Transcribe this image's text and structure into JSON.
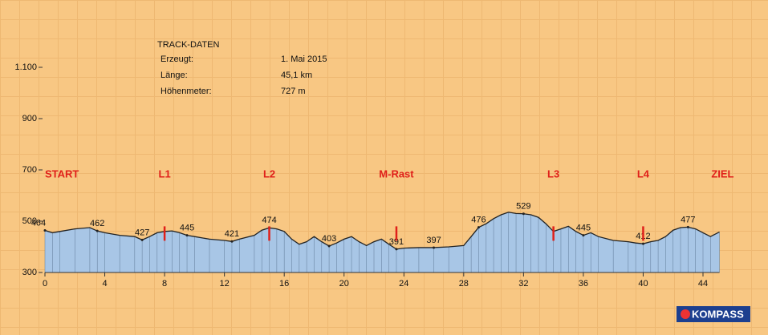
{
  "chart_data": {
    "type": "area",
    "info": {
      "title": "TRACK-DATEN",
      "rows": [
        [
          "Erzeugt:",
          "1. Mai 2015"
        ],
        [
          "Länge:",
          "45,1 km"
        ],
        [
          "Höhenmeter:",
          "727 m"
        ]
      ]
    },
    "x": [
      0,
      0.5,
      1,
      2,
      3,
      3.5,
      4,
      5,
      6,
      6.5,
      7,
      7.5,
      8,
      8.5,
      9,
      9.5,
      10,
      11,
      12,
      12.5,
      13,
      14,
      14.5,
      15,
      15.5,
      16,
      16.5,
      17,
      17.5,
      18,
      18.5,
      19,
      19.5,
      20,
      20.5,
      21,
      21.5,
      22,
      22.5,
      23,
      23.5,
      24,
      25,
      26,
      27,
      28,
      28.5,
      29,
      29.5,
      30,
      30.5,
      31,
      31.5,
      32,
      32.5,
      33,
      33.5,
      34,
      34.5,
      35,
      35.5,
      36,
      36.5,
      37,
      38,
      39,
      39.5,
      40,
      40.5,
      41,
      41.5,
      42,
      42.5,
      43,
      43.5,
      44,
      44.5,
      45.1
    ],
    "values": [
      464,
      455,
      460,
      470,
      475,
      462,
      455,
      445,
      440,
      427,
      440,
      455,
      460,
      462,
      455,
      445,
      440,
      430,
      425,
      421,
      430,
      445,
      465,
      474,
      470,
      460,
      430,
      410,
      420,
      440,
      420,
      403,
      415,
      430,
      440,
      420,
      405,
      420,
      430,
      410,
      391,
      395,
      397,
      397,
      400,
      405,
      440,
      476,
      490,
      510,
      525,
      535,
      530,
      529,
      525,
      515,
      490,
      460,
      470,
      480,
      460,
      445,
      455,
      440,
      425,
      420,
      415,
      412,
      420,
      425,
      440,
      465,
      475,
      477,
      470,
      455,
      440,
      458
    ],
    "color": "#a8c6e6",
    "point_labels": [
      {
        "x": 0,
        "value": 464
      },
      {
        "x": 3.5,
        "value": 462
      },
      {
        "x": 6.5,
        "value": 427
      },
      {
        "x": 9.5,
        "value": 445
      },
      {
        "x": 12.5,
        "value": 421
      },
      {
        "x": 15,
        "value": 474
      },
      {
        "x": 19,
        "value": 403
      },
      {
        "x": 23.5,
        "value": 391
      },
      {
        "x": 26,
        "value": 397
      },
      {
        "x": 29,
        "value": 476
      },
      {
        "x": 32,
        "value": 529
      },
      {
        "x": 36,
        "value": 445
      },
      {
        "x": 40,
        "value": 412
      },
      {
        "x": 43,
        "value": 477
      }
    ],
    "markers": [
      {
        "x": 0,
        "label": "START"
      },
      {
        "x": 8,
        "label": "L1"
      },
      {
        "x": 15,
        "label": "L2"
      },
      {
        "x": 23.5,
        "label": "M-Rast"
      },
      {
        "x": 34,
        "label": "L3"
      },
      {
        "x": 40,
        "label": "L4"
      },
      {
        "x": 45.1,
        "label": "ZIEL"
      }
    ],
    "xlim": [
      0,
      44
    ],
    "xticks": [
      0,
      4,
      8,
      12,
      16,
      20,
      24,
      28,
      32,
      36,
      40,
      44
    ],
    "ylim": [
      300,
      1100
    ],
    "yticks": [
      300,
      500,
      700,
      900,
      {
        "value": 1100,
        "label": "1.100"
      }
    ],
    "logo": "KOMPASS"
  }
}
